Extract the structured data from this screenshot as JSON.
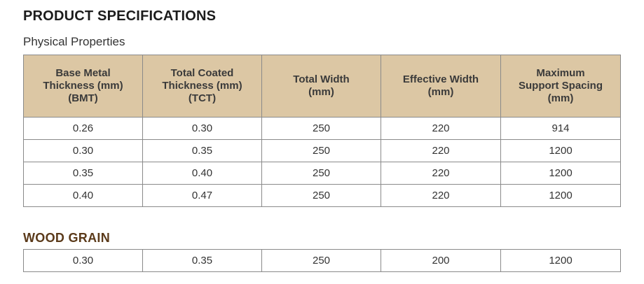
{
  "title": "PRODUCT SPECIFICATIONS",
  "subtitle": "Physical Properties",
  "headers": [
    [
      "Base Metal",
      "Thickness (mm)",
      "(BMT)"
    ],
    [
      "Total Coated",
      "Thickness (mm)",
      "(TCT)"
    ],
    [
      "Total Width",
      "(mm)"
    ],
    [
      "Effective Width",
      "(mm)"
    ],
    [
      "Maximum",
      "Support Spacing",
      "(mm)"
    ]
  ],
  "rows": [
    [
      "0.26",
      "0.30",
      "250",
      "220",
      "914"
    ],
    [
      "0.30",
      "0.35",
      "250",
      "220",
      "1200"
    ],
    [
      "0.35",
      "0.40",
      "250",
      "220",
      "1200"
    ],
    [
      "0.40",
      "0.47",
      "250",
      "220",
      "1200"
    ]
  ],
  "wood_grain": {
    "title": "WOOD GRAIN",
    "row": [
      "0.30",
      "0.35",
      "250",
      "200",
      "1200"
    ]
  },
  "colors": {
    "header_bg": "#dcc7a4",
    "section_title": "#5b3a1a",
    "border": "#8a8a8a"
  }
}
